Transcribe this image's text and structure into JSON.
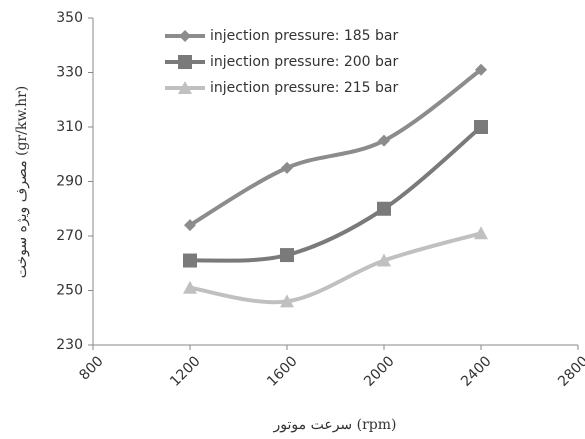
{
  "chart_data": {
    "type": "line",
    "x_label": "سرعت موتور (rpm)",
    "y_label": "مصرف ویژه سوخت (gr/kw.hr)",
    "x": [
      1200,
      1600,
      2000,
      2400
    ],
    "series": [
      {
        "name": "injection pressure: 185 bar",
        "color": "#8c8c8c",
        "marker": "diamond",
        "values": [
          274,
          295,
          305,
          331
        ]
      },
      {
        "name": "injection pressure: 200 bar",
        "color": "#7a7a7a",
        "marker": "square",
        "values": [
          261,
          263,
          280,
          310
        ]
      },
      {
        "name": "injection pressure: 215 bar",
        "color": "#c0c0c0",
        "marker": "triangle",
        "values": [
          251,
          246,
          261,
          271
        ]
      }
    ],
    "xlim": [
      800,
      2800
    ],
    "xticks": [
      800,
      1200,
      1600,
      2000,
      2400,
      2800
    ],
    "ylim": [
      230,
      350
    ],
    "yticks": [
      230,
      250,
      270,
      290,
      310,
      330,
      350
    ],
    "smooth": true,
    "grid": false,
    "legend": "upper center"
  }
}
